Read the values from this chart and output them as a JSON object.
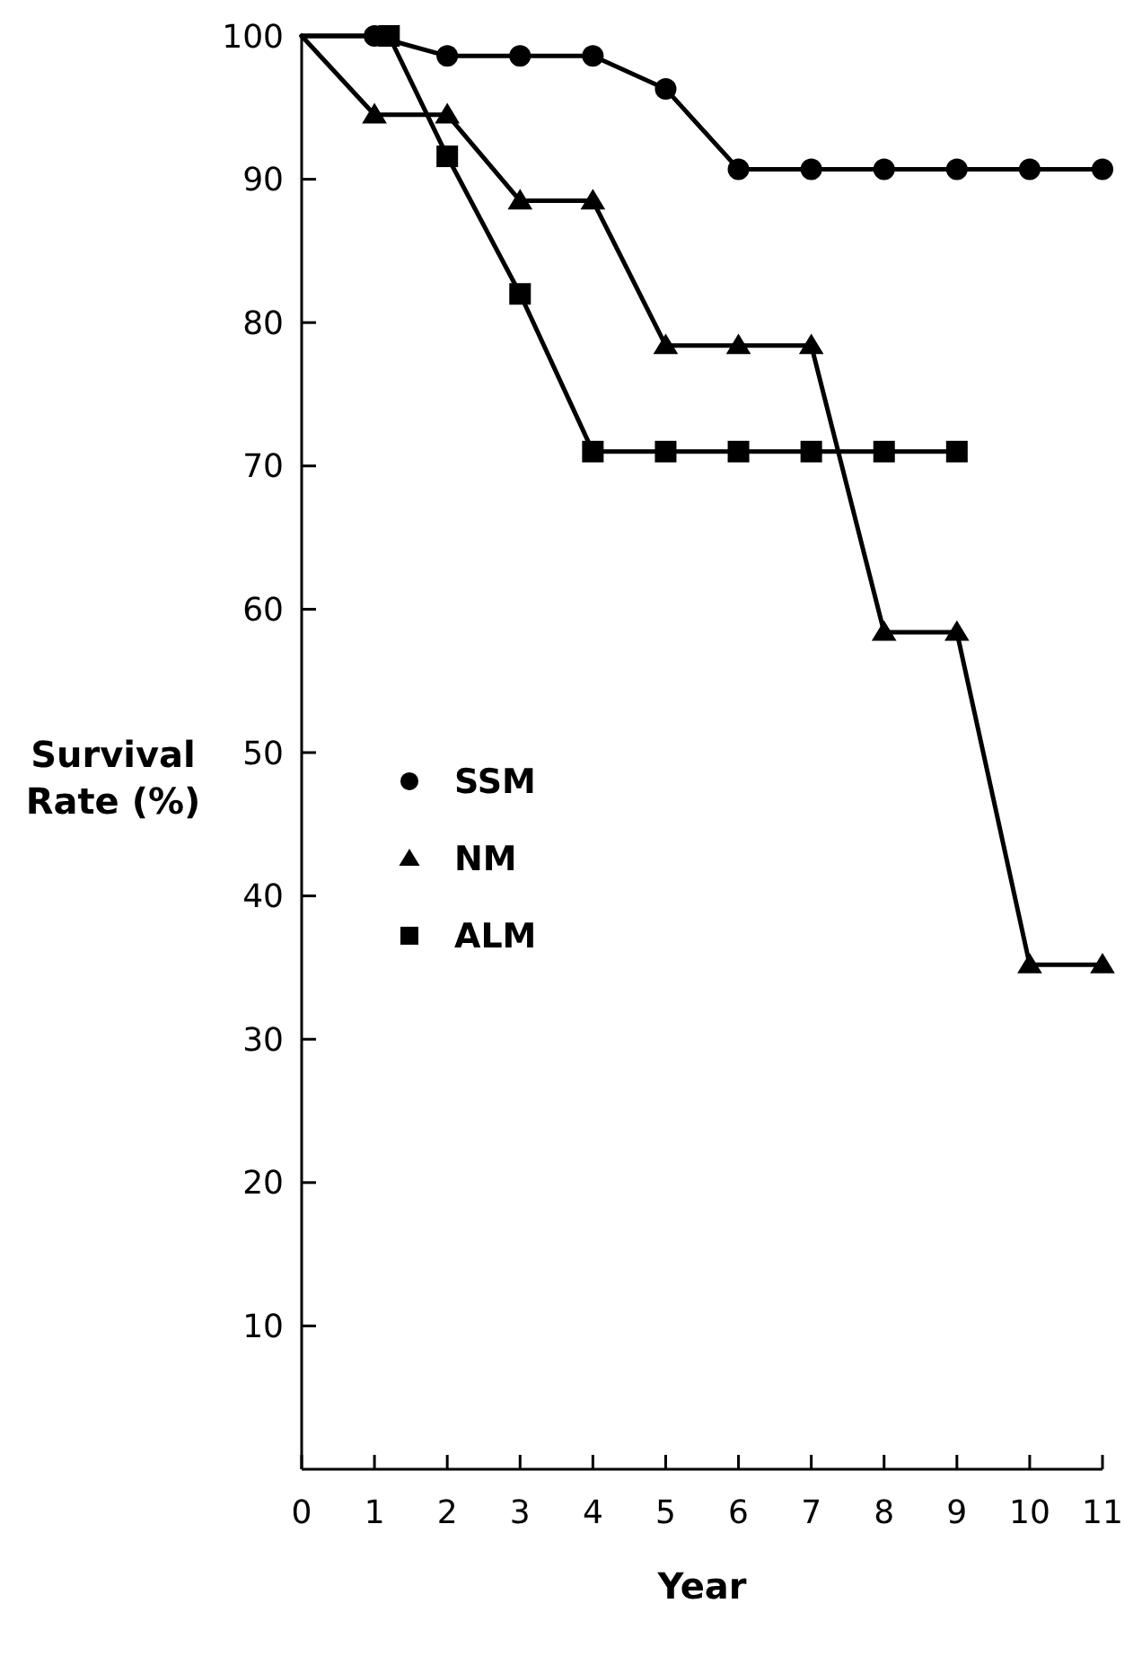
{
  "chart_data": {
    "type": "line",
    "xlabel": "Year",
    "ylabel": "Survival Rate (%)",
    "xlim": [
      0,
      11
    ],
    "xticks": [
      0,
      1,
      2,
      3,
      4,
      5,
      6,
      7,
      8,
      9,
      10,
      11
    ],
    "ylim": [
      0,
      100
    ],
    "yticks": [
      10,
      20,
      30,
      40,
      50,
      60,
      70,
      80,
      90,
      100
    ],
    "grid": false,
    "legend": "left",
    "line_style": "solid",
    "series": [
      {
        "name": "SSM",
        "color": "#000000",
        "marker": "circle",
        "x": [
          0,
          1,
          2,
          3,
          4,
          5,
          6,
          7,
          8,
          9,
          10,
          11
        ],
        "values": [
          100,
          100,
          98.6,
          98.6,
          98.6,
          96.3,
          90.7,
          90.7,
          90.7,
          90.7,
          90.7,
          90.7
        ]
      },
      {
        "name": "NM",
        "color": "#000000",
        "marker": "triangle",
        "x": [
          0,
          1,
          2,
          3,
          4,
          5,
          6,
          7,
          8,
          9,
          10,
          11
        ],
        "values": [
          100,
          94.5,
          94.5,
          88.5,
          88.5,
          78.4,
          78.4,
          78.4,
          58.4,
          58.4,
          35.2,
          35.2
        ]
      },
      {
        "name": "ALM",
        "color": "#000000",
        "marker": "square",
        "x": [
          0,
          1.2,
          2,
          3,
          4,
          5,
          6,
          7,
          8,
          9
        ],
        "values": [
          100,
          100,
          91.6,
          82,
          71,
          71,
          71,
          71,
          71,
          71
        ]
      }
    ]
  }
}
